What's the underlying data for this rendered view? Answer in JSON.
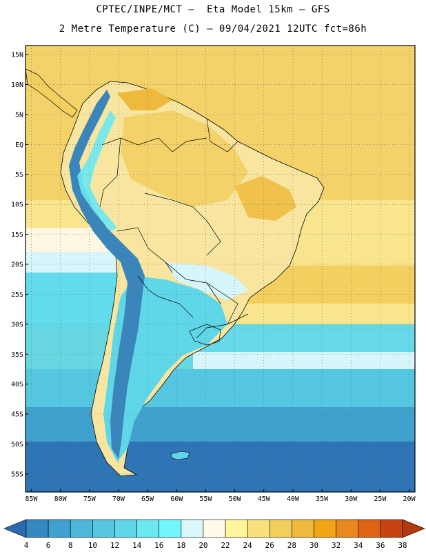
{
  "header": {
    "line1": "CPTEC/INPE/MCT –  Eta Model 15km – GFS",
    "line2": "2 Metre Temperature (C) – 09/04/2021 12UTC fct=86h"
  },
  "map": {
    "lat_labels": [
      "15N",
      "10N",
      "5N",
      "EQ",
      "5S",
      "10S",
      "15S",
      "20S",
      "25S",
      "30S",
      "35S",
      "40S",
      "45S",
      "50S",
      "55S"
    ],
    "lon_labels": [
      "85W",
      "80W",
      "75W",
      "70W",
      "65W",
      "60W",
      "55W",
      "50W",
      "45W",
      "40W",
      "35W",
      "30W",
      "25W",
      "20W"
    ],
    "grid": true,
    "extent": {
      "lon_min": -86,
      "lon_max": -19,
      "lat_min": -58,
      "lat_max": 16.5
    }
  },
  "colorbar": {
    "labels": [
      "4",
      "6",
      "8",
      "10",
      "12",
      "14",
      "16",
      "18",
      "20",
      "22",
      "24",
      "26",
      "28",
      "30",
      "32",
      "34",
      "36",
      "38"
    ],
    "colors": [
      "#2b6cb0",
      "#3589c1",
      "#40a1cf",
      "#4db7da",
      "#56c7e0",
      "#5fd7e8",
      "#6be8f2",
      "#6ff7fb",
      "#d9f8fb",
      "#fffbe8",
      "#fff59a",
      "#f8e07c",
      "#f2cf5a",
      "#eeb93c",
      "#f0a516",
      "#e98720",
      "#e06213",
      "#c74410",
      "#b33a0e"
    ]
  },
  "palette": {
    "ocean_deep": "#2f74b4",
    "ocean_mid": "#3f94c9",
    "ocean_cool": "#54c4e0",
    "ocean_cyan": "#62dcec",
    "ocean_pale": "#d6f6fb",
    "ocean_cream": "#fdf6e0",
    "ocean_warm": "#f6e4a0",
    "ocean_hot": "#f0cd62",
    "land_warm": "#f8e6a0",
    "land_hot": "#f1c858",
    "andes": "#3a86bb"
  }
}
